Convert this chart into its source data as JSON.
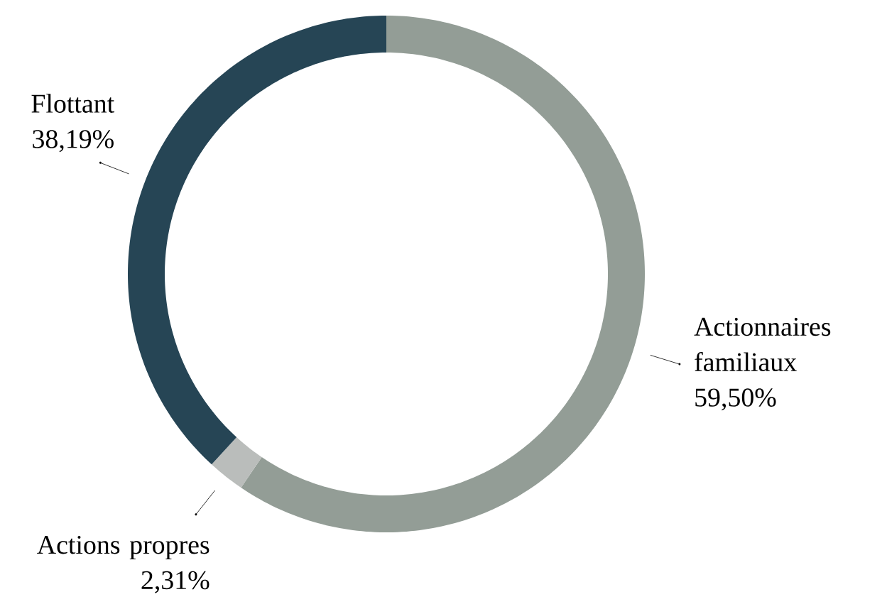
{
  "chart_data": {
    "type": "donut",
    "categories": [
      "Actionnaires familiaux",
      "Actions propres",
      "Flottant"
    ],
    "values": [
      59.5,
      2.31,
      38.19
    ],
    "colors": [
      "#939d96",
      "#babdbb",
      "#264555"
    ],
    "value_labels": [
      "59,50%",
      "2,31%",
      "38,19%"
    ]
  }
}
